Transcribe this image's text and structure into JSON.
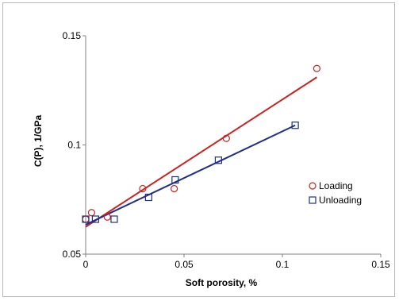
{
  "chart_data": {
    "type": "scatter",
    "xlabel": "Soft porosity, %",
    "ylabel": "C(P), 1/GPa",
    "xlim": [
      0,
      0.15
    ],
    "ylim": [
      0.05,
      0.15
    ],
    "x_ticks": [
      {
        "value": 0,
        "label": "0"
      },
      {
        "value": 0.05,
        "label": "0.05"
      },
      {
        "value": 0.1,
        "label": "0.1"
      },
      {
        "value": 0.15,
        "label": "0.15"
      }
    ],
    "y_ticks": [
      {
        "value": 0.05,
        "label": "0.05"
      },
      {
        "value": 0.1,
        "label": "0.1"
      },
      {
        "value": 0.15,
        "label": "0.15"
      }
    ],
    "grid": false,
    "legend_position": "right",
    "series": [
      {
        "name": "Loading",
        "marker": "circle",
        "color": "#cc2222",
        "points": [
          {
            "x": 0.0,
            "y": 0.066
          },
          {
            "x": 0.003,
            "y": 0.069
          },
          {
            "x": 0.011,
            "y": 0.067
          },
          {
            "x": 0.029,
            "y": 0.08
          },
          {
            "x": 0.045,
            "y": 0.08
          },
          {
            "x": 0.0715,
            "y": 0.103
          },
          {
            "x": 0.1175,
            "y": 0.135
          }
        ],
        "trendline": {
          "x": [
            0,
            0.1175
          ],
          "y": [
            0.0625,
            0.131
          ]
        }
      },
      {
        "name": "Unloading",
        "marker": "square",
        "color": "#1f2f88",
        "points": [
          {
            "x": 0.0,
            "y": 0.066
          },
          {
            "x": 0.005,
            "y": 0.066
          },
          {
            "x": 0.0145,
            "y": 0.066
          },
          {
            "x": 0.032,
            "y": 0.076
          },
          {
            "x": 0.0455,
            "y": 0.084
          },
          {
            "x": 0.0675,
            "y": 0.093
          },
          {
            "x": 0.1065,
            "y": 0.109
          }
        ],
        "trendline": {
          "x": [
            0,
            0.1065
          ],
          "y": [
            0.0635,
            0.109
          ]
        }
      }
    ]
  }
}
